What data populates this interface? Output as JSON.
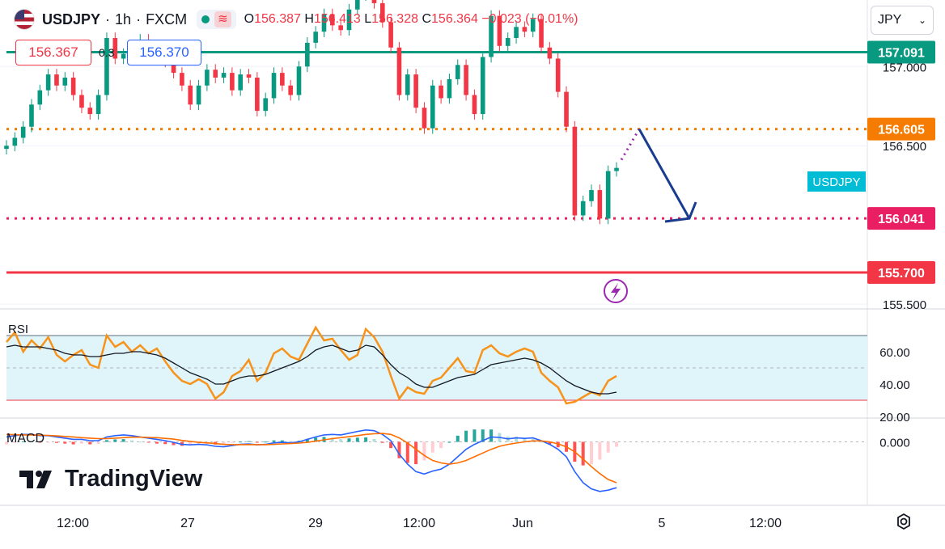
{
  "header": {
    "symbol": "USDJPY",
    "interval": "1h",
    "exchange": "FXCM",
    "separator": "·",
    "market_icon": "market-open-dot",
    "wave_icon": "wave-icon",
    "ohlc": {
      "o_label": "O",
      "o": "156.387",
      "h_label": "H",
      "h": "156.413",
      "l_label": "L",
      "l": "156.328",
      "c_label": "C",
      "c": "156.364",
      "change": "−0.023 (−0.01%)"
    }
  },
  "trade": {
    "sell_price": "156.367",
    "spread": "0.3",
    "buy_price": "156.370"
  },
  "currency_select": {
    "value": "JPY",
    "icon": "chevron-down-icon"
  },
  "brand": {
    "name": "TradingView"
  },
  "settings_icon": "gear-icon",
  "colors": {
    "up": "#089981",
    "down": "#f23645",
    "level_teal": "#089981",
    "level_orange": "#f57c00",
    "level_pink": "#e91e63",
    "level_red": "#f23645",
    "rsi": "#f7931a",
    "rsi_band": "#dff5fa",
    "macd": "#2962ff",
    "signal": "#ff6d00",
    "arrow": "#1a3c8f",
    "symbol_tag": "#00bcd4"
  },
  "chart_data": [
    {
      "type": "candlestick",
      "title": "USDJPY · 1h · FXCM",
      "ylim": [
        155.47,
        157.42
      ],
      "price_axis_ticks": [
        "157.000",
        "156.500",
        "155.500"
      ],
      "time_axis_labels": [
        "12:00",
        "27",
        "29",
        "12:00",
        "Jun",
        "5",
        "12:00"
      ],
      "symbol_label": "USDJPY",
      "price_series": [
        156.5,
        156.55,
        156.62,
        156.76,
        156.85,
        156.95,
        156.88,
        156.93,
        156.82,
        156.74,
        156.7,
        156.82,
        157.18,
        157.05,
        157.08,
        157.13,
        157.17,
        157.05,
        157.12,
        157.03,
        156.96,
        156.88,
        156.76,
        156.88,
        156.98,
        156.93,
        156.96,
        156.85,
        156.95,
        156.93,
        156.72,
        156.8,
        156.96,
        156.88,
        156.82,
        157.0,
        157.15,
        157.22,
        157.33,
        157.26,
        157.23,
        157.36,
        157.45,
        157.52,
        157.4,
        157.28,
        157.12,
        156.82,
        156.95,
        156.74,
        156.61,
        156.88,
        156.8,
        156.92,
        157.01,
        156.82,
        156.7,
        157.06,
        157.32,
        157.13,
        157.18,
        157.25,
        157.22,
        157.3,
        157.12,
        157.05,
        156.84,
        156.62,
        156.06,
        156.15,
        156.22,
        156.04,
        156.34,
        156.36
      ],
      "levels": [
        {
          "label": "157.091",
          "value": 157.091,
          "style": "solid",
          "color": "#089981"
        },
        {
          "label": "156.605",
          "value": 156.605,
          "style": "dotted",
          "color": "#f57c00"
        },
        {
          "label": "156.041",
          "value": 156.041,
          "style": "dotted",
          "color": "#e91e63"
        },
        {
          "label": "155.700",
          "value": 155.7,
          "style": "solid",
          "color": "#f23645"
        }
      ],
      "projection": {
        "from": 156.605,
        "to": 156.041,
        "direction": "down"
      }
    },
    {
      "type": "line",
      "title": "RSI",
      "price_axis_ticks": [
        "60.00",
        "40.00",
        "20.00"
      ],
      "ylim": [
        19,
        83
      ],
      "band": [
        30,
        70
      ],
      "series": [
        {
          "values": [
            66,
            72,
            60,
            67,
            62,
            69,
            58,
            54,
            58,
            61,
            52,
            50,
            70,
            63,
            66,
            60,
            64,
            59,
            62,
            54,
            47,
            42,
            40,
            43,
            40,
            31,
            35,
            45,
            48,
            55,
            42,
            47,
            59,
            62,
            57,
            55,
            65,
            75,
            67,
            68,
            61,
            55,
            58,
            74,
            69,
            60,
            45,
            31,
            38,
            35,
            34,
            42,
            44,
            50,
            56,
            48,
            47,
            61,
            64,
            59,
            57,
            60,
            62,
            60,
            47,
            42,
            38,
            28,
            29,
            32,
            35,
            33,
            42,
            45
          ]
        },
        {
          "values": [
            63,
            64,
            63,
            63,
            63,
            62,
            61,
            59,
            58,
            58,
            57,
            57,
            58,
            59,
            59,
            60,
            60,
            59,
            58,
            56,
            53,
            50,
            47,
            45,
            43,
            40,
            40,
            42,
            44,
            45,
            45,
            46,
            48,
            50,
            52,
            54,
            57,
            61,
            63,
            64,
            62,
            60,
            61,
            64,
            63,
            58,
            52,
            47,
            44,
            40,
            38,
            38,
            40,
            42,
            44,
            45,
            46,
            49,
            52,
            53,
            54,
            55,
            56,
            55,
            53,
            50,
            46,
            42,
            39,
            37,
            35,
            34,
            34,
            35
          ]
        }
      ]
    },
    {
      "type": "line",
      "title": "MACD",
      "price_axis_ticks": [
        "0.000"
      ],
      "ylim": [
        -0.24,
        0.08
      ],
      "zero_line": 0,
      "series": [
        {
          "values": [
            0.02,
            0.025,
            0.03,
            0.03,
            0.025,
            0.025,
            0.02,
            0.015,
            0.01,
            0.01,
            0.005,
            0.005,
            0.02,
            0.025,
            0.028,
            0.025,
            0.02,
            0.015,
            0.01,
            0.005,
            -0.002,
            -0.01,
            -0.012,
            -0.01,
            -0.012,
            -0.018,
            -0.02,
            -0.015,
            -0.01,
            -0.008,
            -0.012,
            -0.01,
            -0.004,
            -0.002,
            -0.004,
            0.0,
            0.01,
            0.02,
            0.028,
            0.03,
            0.028,
            0.035,
            0.042,
            0.048,
            0.045,
            0.03,
            0.005,
            -0.05,
            -0.09,
            -0.12,
            -0.13,
            -0.118,
            -0.11,
            -0.09,
            -0.06,
            -0.03,
            -0.01,
            0.005,
            0.02,
            0.018,
            0.012,
            0.016,
            0.014,
            0.016,
            0.005,
            -0.01,
            -0.03,
            -0.06,
            -0.12,
            -0.165,
            -0.19,
            -0.2,
            -0.195,
            -0.185
          ]
        },
        {
          "values": [
            0.03,
            0.029,
            0.028,
            0.028,
            0.027,
            0.026,
            0.024,
            0.022,
            0.02,
            0.017,
            0.015,
            0.013,
            0.013,
            0.015,
            0.017,
            0.019,
            0.019,
            0.018,
            0.017,
            0.014,
            0.011,
            0.006,
            0.002,
            -0.002,
            -0.004,
            -0.007,
            -0.01,
            -0.011,
            -0.011,
            -0.011,
            -0.011,
            -0.011,
            -0.01,
            -0.008,
            -0.007,
            -0.005,
            -0.002,
            0.003,
            0.008,
            0.013,
            0.017,
            0.021,
            0.025,
            0.03,
            0.033,
            0.034,
            0.03,
            0.016,
            -0.005,
            -0.03,
            -0.055,
            -0.075,
            -0.085,
            -0.09,
            -0.085,
            -0.075,
            -0.06,
            -0.045,
            -0.03,
            -0.018,
            -0.01,
            -0.005,
            0.0,
            0.004,
            0.004,
            0.0,
            -0.008,
            -0.02,
            -0.04,
            -0.07,
            -0.1,
            -0.128,
            -0.152,
            -0.165
          ]
        }
      ]
    }
  ]
}
